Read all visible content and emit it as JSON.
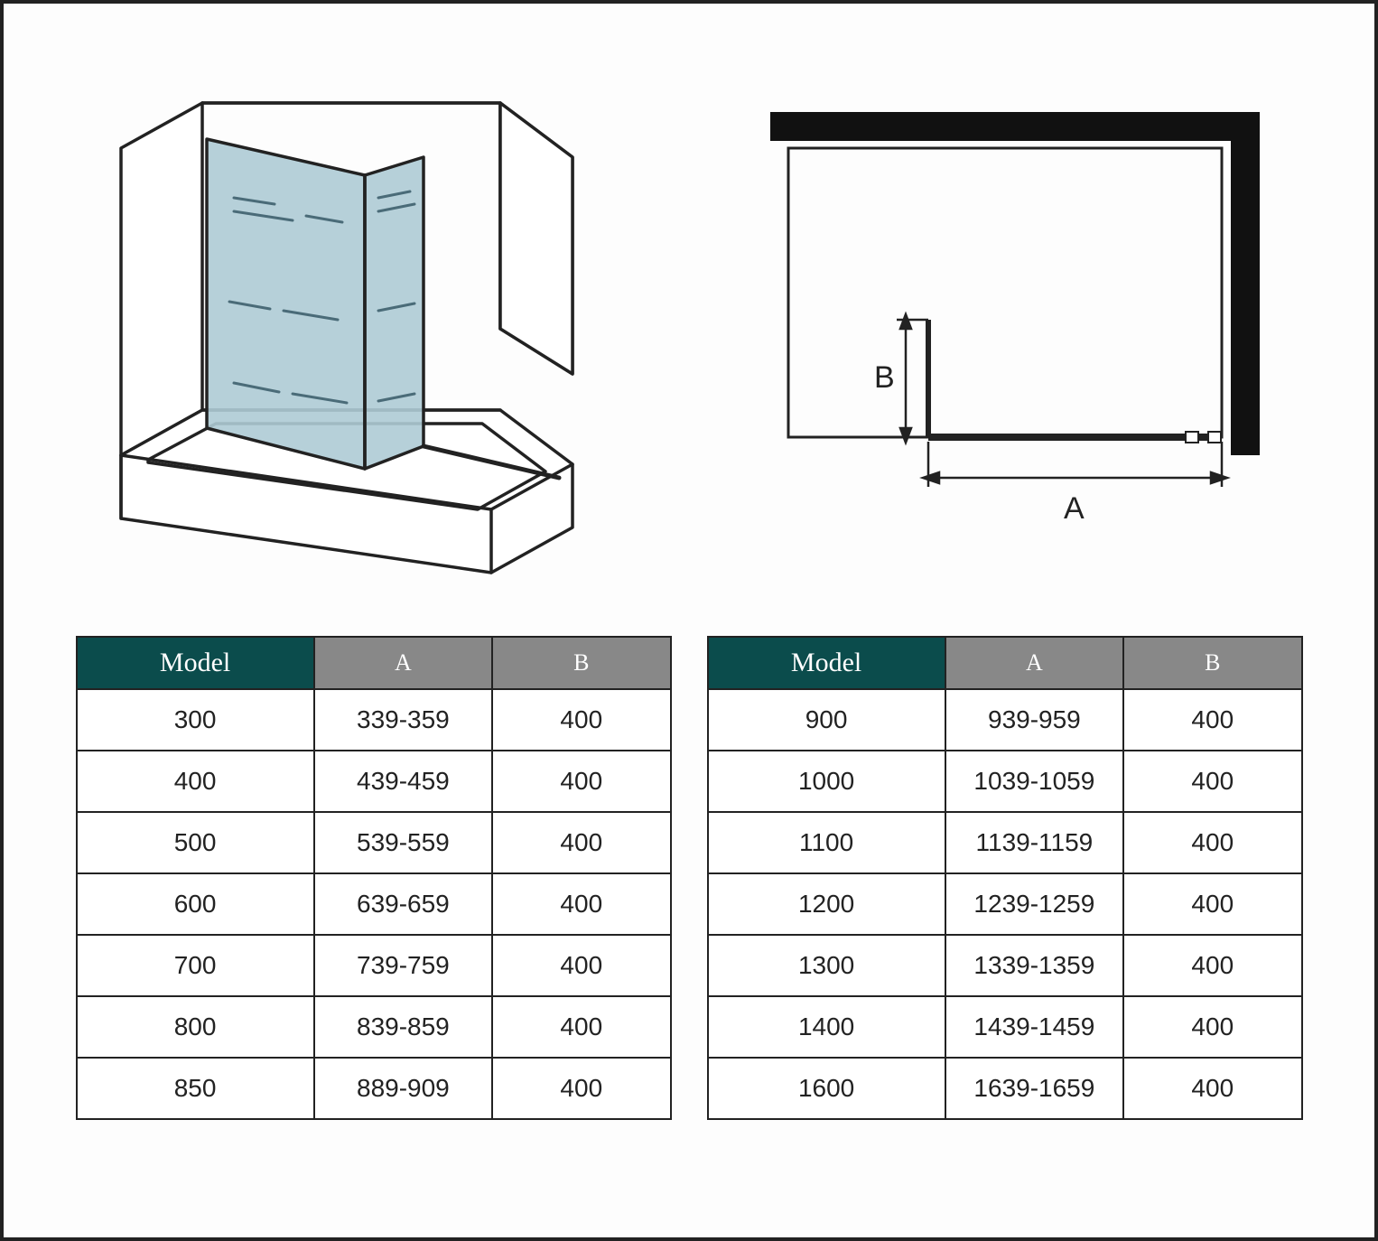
{
  "headers": {
    "model": "Model",
    "a": "A",
    "b": "B"
  },
  "glass_color": "#aecbd5",
  "stroke_color": "#222222",
  "header_model_bg": "#0b4c4c",
  "header_ab_bg": "#888888",
  "plan_label_a": "A",
  "plan_label_b": "B",
  "table_left": {
    "rows": [
      {
        "model": "300",
        "a": "339-359",
        "b": "400"
      },
      {
        "model": "400",
        "a": "439-459",
        "b": "400"
      },
      {
        "model": "500",
        "a": "539-559",
        "b": "400"
      },
      {
        "model": "600",
        "a": "639-659",
        "b": "400"
      },
      {
        "model": "700",
        "a": "739-759",
        "b": "400"
      },
      {
        "model": "800",
        "a": "839-859",
        "b": "400"
      },
      {
        "model": "850",
        "a": "889-909",
        "b": "400"
      }
    ]
  },
  "table_right": {
    "rows": [
      {
        "model": "900",
        "a": "939-959",
        "b": "400"
      },
      {
        "model": "1000",
        "a": "1039-1059",
        "b": "400"
      },
      {
        "model": "1100",
        "a": "1139-1159",
        "b": "400"
      },
      {
        "model": "1200",
        "a": "1239-1259",
        "b": "400"
      },
      {
        "model": "1300",
        "a": "1339-1359",
        "b": "400"
      },
      {
        "model": "1400",
        "a": "1439-1459",
        "b": "400"
      },
      {
        "model": "1600",
        "a": "1639-1659",
        "b": "400"
      }
    ]
  }
}
